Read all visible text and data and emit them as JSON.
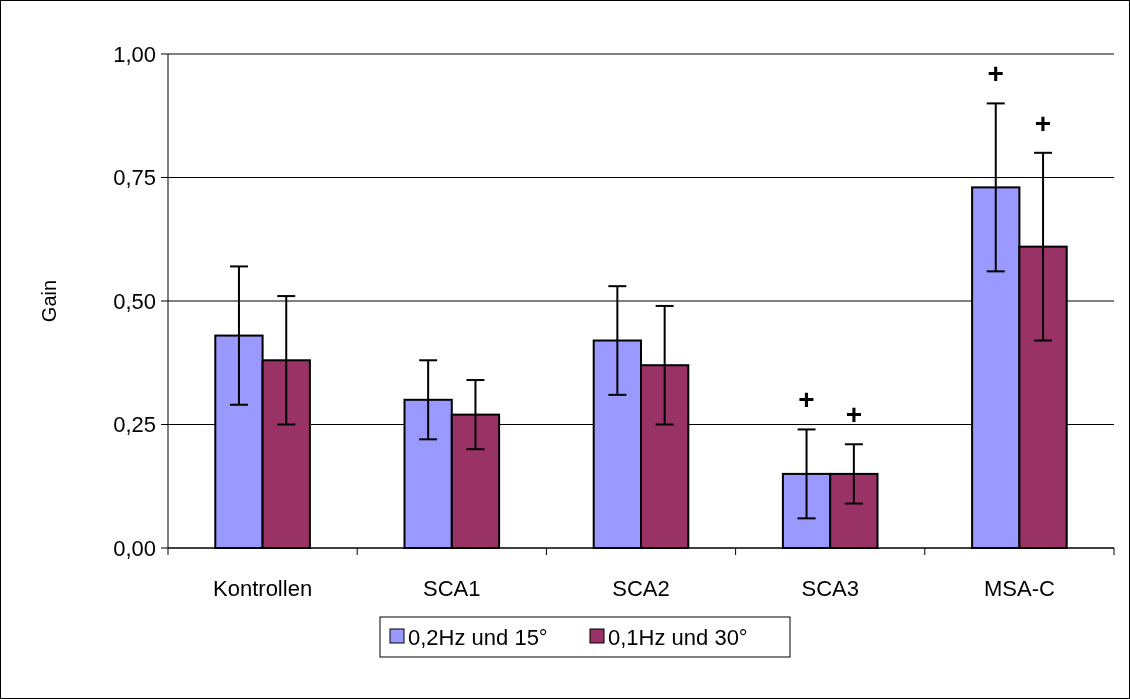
{
  "chart_data": {
    "type": "bar",
    "ylabel": "Gain",
    "categories": [
      "Kontrollen",
      "SCA1",
      "SCA2",
      "SCA3",
      "MSA-C"
    ],
    "series": [
      {
        "name": "0,2Hz und 15°",
        "color": "#9999ff",
        "values": [
          0.43,
          0.3,
          0.42,
          0.15,
          0.73
        ],
        "errors": [
          [
            0.29,
            0.57
          ],
          [
            0.22,
            0.38
          ],
          [
            0.31,
            0.53
          ],
          [
            0.06,
            0.24
          ],
          [
            0.56,
            0.9
          ]
        ]
      },
      {
        "name": "0,1Hz und 30°",
        "color": "#993366",
        "values": [
          0.38,
          0.27,
          0.37,
          0.15,
          0.61
        ],
        "errors": [
          [
            0.25,
            0.51
          ],
          [
            0.2,
            0.34
          ],
          [
            0.25,
            0.49
          ],
          [
            0.09,
            0.21
          ],
          [
            0.42,
            0.8
          ]
        ]
      }
    ],
    "ylim": [
      0,
      1
    ],
    "yticks": [
      {
        "value": 0,
        "label": "0,00"
      },
      {
        "value": 0.25,
        "label": "0,25"
      },
      {
        "value": 0.5,
        "label": "0,50"
      },
      {
        "value": 0.75,
        "label": "0,75"
      },
      {
        "value": 1,
        "label": "1,00"
      }
    ],
    "grid": "y",
    "legend": "bottom",
    "annotations": [
      "+",
      "+",
      "+",
      "+"
    ]
  }
}
